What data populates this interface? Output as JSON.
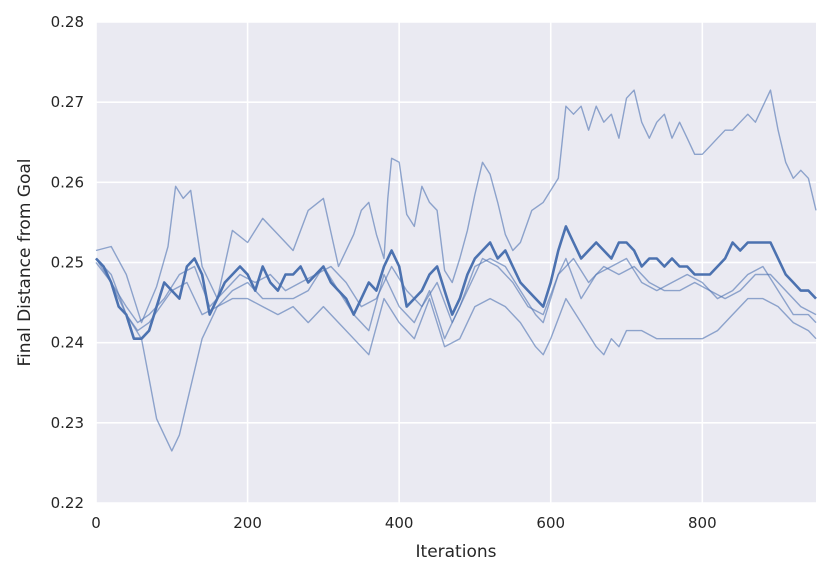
{
  "colors": {
    "background": "#eaeaf2",
    "grid": "#ffffff",
    "series": "#4c72b0",
    "text": "#262626"
  },
  "chart_data": {
    "type": "line",
    "xlabel": "Iterations",
    "ylabel": "Final Distance from Goal",
    "xlim": [
      0,
      950
    ],
    "ylim": [
      0.22,
      0.28
    ],
    "xticks": [
      0,
      200,
      400,
      600,
      800
    ],
    "yticks": [
      0.22,
      0.23,
      0.24,
      0.25,
      0.26,
      0.27,
      0.28
    ],
    "xtick_labels": [
      "0",
      "200",
      "400",
      "600",
      "800"
    ],
    "ytick_labels": [
      "0.22",
      "0.23",
      "0.24",
      "0.25",
      "0.26",
      "0.27",
      "0.28"
    ],
    "grid": true,
    "series": [
      {
        "role": "upper",
        "x": [
          0,
          20,
          40,
          60,
          80,
          95,
          105,
          115,
          125,
          140,
          160,
          180,
          200,
          220,
          240,
          260,
          280,
          300,
          320,
          340,
          350,
          360,
          370,
          380,
          385,
          390,
          400,
          410,
          420,
          430,
          440,
          450,
          460,
          470,
          480,
          490,
          500,
          510,
          520,
          530,
          540,
          550,
          560,
          575,
          590,
          600,
          610,
          620,
          630,
          640,
          650,
          660,
          670,
          680,
          690,
          700,
          710,
          720,
          730,
          740,
          750,
          760,
          770,
          780,
          790,
          800,
          810,
          820,
          830,
          840,
          850,
          860,
          870,
          880,
          890,
          900,
          910,
          920,
          930,
          940,
          950
        ],
        "values": [
          0.2515,
          0.252,
          0.2485,
          0.2425,
          0.247,
          0.252,
          0.2595,
          0.258,
          0.259,
          0.2495,
          0.2455,
          0.254,
          0.2525,
          0.2555,
          0.2535,
          0.2515,
          0.2565,
          0.258,
          0.2495,
          0.2535,
          0.2565,
          0.2575,
          0.2535,
          0.2505,
          0.258,
          0.263,
          0.2625,
          0.256,
          0.2545,
          0.2595,
          0.2575,
          0.2565,
          0.249,
          0.2475,
          0.2505,
          0.254,
          0.2585,
          0.2625,
          0.261,
          0.2575,
          0.2535,
          0.2515,
          0.2525,
          0.2565,
          0.2575,
          0.259,
          0.2605,
          0.2695,
          0.2685,
          0.2695,
          0.2665,
          0.2695,
          0.2675,
          0.2685,
          0.2655,
          0.2705,
          0.2715,
          0.2675,
          0.2655,
          0.2675,
          0.2685,
          0.2655,
          0.2675,
          0.2655,
          0.2635,
          0.2635,
          0.2645,
          0.2655,
          0.2665,
          0.2665,
          0.2675,
          0.2685,
          0.2675,
          0.2695,
          0.2715,
          0.2665,
          0.2625,
          0.2605,
          0.2615,
          0.2605,
          0.2565
        ]
      },
      {
        "role": "lower",
        "x": [
          0,
          20,
          40,
          60,
          70,
          80,
          90,
          100,
          110,
          120,
          140,
          160,
          180,
          200,
          220,
          240,
          260,
          280,
          300,
          320,
          340,
          360,
          380,
          400,
          420,
          440,
          460,
          480,
          500,
          520,
          540,
          560,
          580,
          590,
          600,
          620,
          640,
          660,
          670,
          680,
          690,
          700,
          720,
          740,
          760,
          780,
          800,
          820,
          840,
          860,
          880,
          900,
          920,
          940,
          950
        ],
        "values": [
          0.25,
          0.2475,
          0.2435,
          0.2405,
          0.2355,
          0.2305,
          0.2285,
          0.2265,
          0.2285,
          0.2325,
          0.2405,
          0.2445,
          0.2455,
          0.2455,
          0.2445,
          0.2435,
          0.2445,
          0.2425,
          0.2445,
          0.2425,
          0.2405,
          0.2385,
          0.2455,
          0.2425,
          0.2405,
          0.2455,
          0.2395,
          0.2405,
          0.2445,
          0.2455,
          0.2445,
          0.2425,
          0.2395,
          0.2385,
          0.2405,
          0.2455,
          0.2425,
          0.2395,
          0.2385,
          0.2405,
          0.2395,
          0.2415,
          0.2415,
          0.2405,
          0.2405,
          0.2405,
          0.2405,
          0.2415,
          0.2435,
          0.2455,
          0.2455,
          0.2445,
          0.2425,
          0.2415,
          0.2405
        ]
      },
      {
        "role": "mid-a",
        "x": [
          0,
          20,
          40,
          55,
          70,
          85,
          100,
          120,
          140,
          160,
          180,
          200,
          220,
          240,
          260,
          280,
          300,
          320,
          340,
          360,
          380,
          400,
          420,
          440,
          460,
          480,
          500,
          520,
          540,
          560,
          580,
          590,
          600,
          610,
          620,
          640,
          660,
          680,
          700,
          720,
          740,
          760,
          780,
          800,
          820,
          840,
          860,
          880,
          900,
          920,
          940,
          950
        ],
        "values": [
          0.2505,
          0.2485,
          0.2435,
          0.2415,
          0.2425,
          0.2445,
          0.2465,
          0.2475,
          0.2435,
          0.2445,
          0.2465,
          0.2475,
          0.2455,
          0.2455,
          0.2455,
          0.2465,
          0.2495,
          0.2465,
          0.2435,
          0.2415,
          0.2485,
          0.2445,
          0.2425,
          0.2465,
          0.2405,
          0.2445,
          0.2495,
          0.2505,
          0.2495,
          0.2465,
          0.2435,
          0.2425,
          0.2455,
          0.2485,
          0.2505,
          0.2455,
          0.2485,
          0.2495,
          0.2505,
          0.2475,
          0.2465,
          0.2475,
          0.2485,
          0.2475,
          0.2455,
          0.2465,
          0.2485,
          0.2495,
          0.2465,
          0.2435,
          0.2435,
          0.2425
        ]
      },
      {
        "role": "mid-b",
        "x": [
          0,
          20,
          40,
          55,
          70,
          90,
          110,
          130,
          150,
          170,
          190,
          210,
          230,
          250,
          270,
          290,
          310,
          330,
          350,
          370,
          390,
          410,
          430,
          450,
          470,
          490,
          510,
          530,
          550,
          570,
          590,
          610,
          630,
          650,
          670,
          690,
          710,
          730,
          750,
          770,
          790,
          810,
          830,
          850,
          870,
          890,
          910,
          930,
          950
        ],
        "values": [
          0.2505,
          0.2475,
          0.2445,
          0.2425,
          0.2435,
          0.2455,
          0.2485,
          0.2495,
          0.2445,
          0.2465,
          0.2485,
          0.2475,
          0.2485,
          0.2465,
          0.2475,
          0.2485,
          0.2495,
          0.2475,
          0.2445,
          0.2455,
          0.2495,
          0.2465,
          0.2445,
          0.2475,
          0.2425,
          0.2465,
          0.2505,
          0.2495,
          0.2475,
          0.2445,
          0.2435,
          0.2485,
          0.2505,
          0.2475,
          0.2495,
          0.2485,
          0.2495,
          0.2475,
          0.2465,
          0.2465,
          0.2475,
          0.2465,
          0.2455,
          0.2465,
          0.2485,
          0.2485,
          0.2465,
          0.2445,
          0.2435
        ]
      },
      {
        "role": "mean",
        "x": [
          0,
          10,
          20,
          30,
          40,
          50,
          60,
          70,
          80,
          90,
          100,
          110,
          120,
          130,
          140,
          150,
          160,
          170,
          180,
          190,
          200,
          210,
          220,
          230,
          240,
          250,
          260,
          270,
          280,
          290,
          300,
          310,
          320,
          330,
          340,
          350,
          360,
          370,
          380,
          390,
          400,
          410,
          420,
          430,
          440,
          450,
          460,
          470,
          480,
          490,
          500,
          510,
          520,
          530,
          540,
          550,
          560,
          570,
          580,
          590,
          600,
          610,
          620,
          630,
          640,
          650,
          660,
          670,
          680,
          690,
          700,
          710,
          720,
          730,
          740,
          750,
          760,
          770,
          780,
          790,
          800,
          810,
          820,
          830,
          840,
          850,
          860,
          870,
          880,
          890,
          900,
          910,
          920,
          930,
          940,
          950
        ],
        "values": [
          0.2505,
          0.2495,
          0.2475,
          0.2445,
          0.2435,
          0.2405,
          0.2405,
          0.2415,
          0.2445,
          0.2475,
          0.2465,
          0.2455,
          0.2495,
          0.2505,
          0.2485,
          0.2435,
          0.2455,
          0.2475,
          0.2485,
          0.2495,
          0.2485,
          0.2465,
          0.2495,
          0.2475,
          0.2465,
          0.2485,
          0.2485,
          0.2495,
          0.2475,
          0.2485,
          0.2495,
          0.2475,
          0.2465,
          0.2455,
          0.2435,
          0.2455,
          0.2475,
          0.2465,
          0.2495,
          0.2515,
          0.2495,
          0.2445,
          0.2455,
          0.2465,
          0.2485,
          0.2495,
          0.2465,
          0.2435,
          0.2455,
          0.2485,
          0.2505,
          0.2515,
          0.2525,
          0.2505,
          0.2515,
          0.2495,
          0.2475,
          0.2465,
          0.2455,
          0.2445,
          0.2475,
          0.2515,
          0.2545,
          0.2525,
          0.2505,
          0.2515,
          0.2525,
          0.2515,
          0.2505,
          0.2525,
          0.2525,
          0.2515,
          0.2495,
          0.2505,
          0.2505,
          0.2495,
          0.2505,
          0.2495,
          0.2495,
          0.2485,
          0.2485,
          0.2485,
          0.2495,
          0.2505,
          0.2525,
          0.2515,
          0.2525,
          0.2525,
          0.2525,
          0.2525,
          0.2505,
          0.2485,
          0.2475,
          0.2465,
          0.2465,
          0.2455
        ]
      }
    ]
  }
}
